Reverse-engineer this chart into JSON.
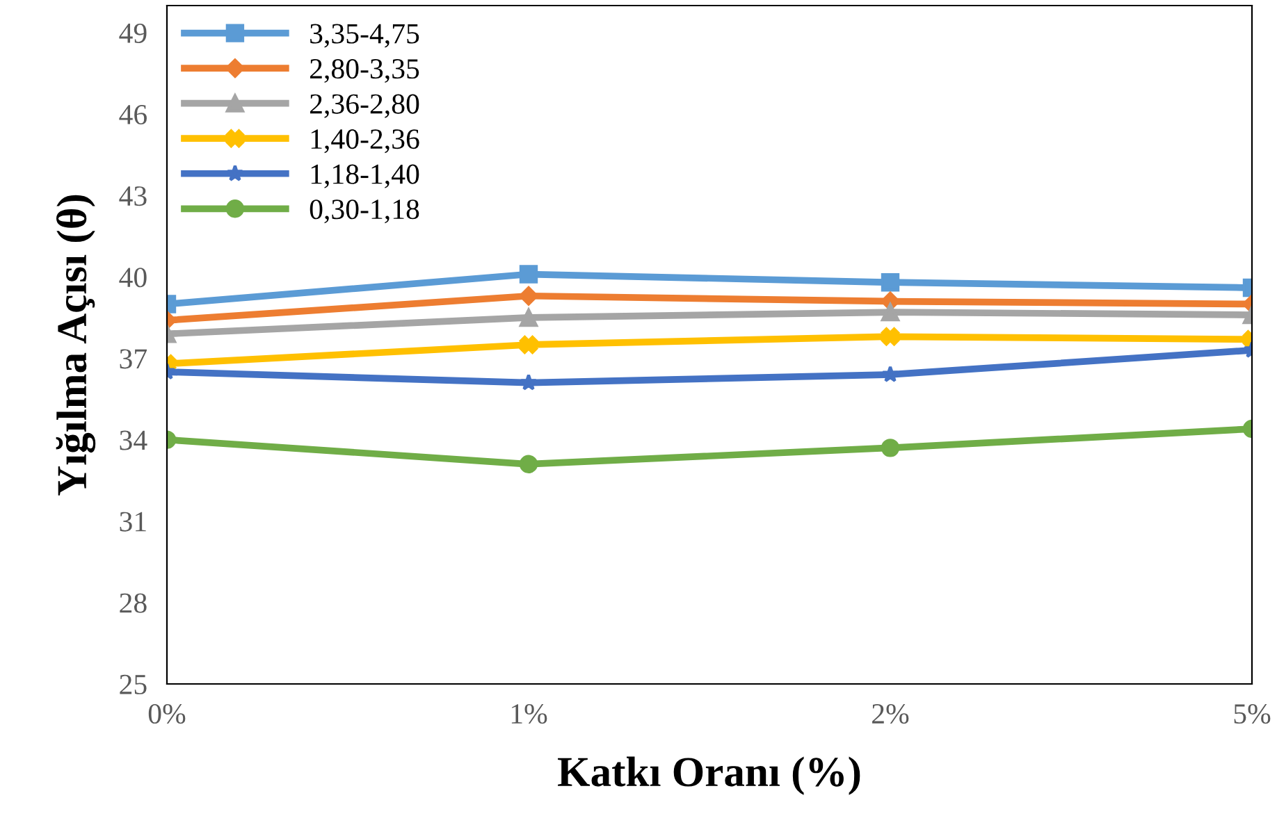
{
  "chart_data": {
    "type": "line",
    "xlabel": "Katkı Oranı (%)",
    "ylabel": "Yığılma Açısı (θ)",
    "categories": [
      "0%",
      "1%",
      "2%",
      "5%"
    ],
    "ylim": [
      25,
      50
    ],
    "yticks": [
      25,
      28,
      31,
      34,
      37,
      40,
      43,
      46,
      49
    ],
    "grid": false,
    "legend": "top left",
    "series": [
      {
        "name": "3,35-4,75",
        "color": "#5b9bd5",
        "marker": "square",
        "values": [
          39.0,
          40.1,
          39.8,
          39.6
        ]
      },
      {
        "name": "2,80-3,35",
        "color": "#ed7d31",
        "marker": "diamond",
        "values": [
          38.4,
          39.3,
          39.1,
          39.0
        ]
      },
      {
        "name": "2,36-2,80",
        "color": "#a5a5a5",
        "marker": "triangle",
        "values": [
          37.9,
          38.5,
          38.7,
          38.6
        ]
      },
      {
        "name": "1,40-2,36",
        "color": "#ffc000",
        "marker": "cross",
        "values": [
          36.8,
          37.5,
          37.8,
          37.7
        ]
      },
      {
        "name": "1,18-1,40",
        "color": "#4472c4",
        "marker": "star",
        "values": [
          36.5,
          36.1,
          36.4,
          37.3
        ]
      },
      {
        "name": "0,30-1,18",
        "color": "#70ad47",
        "marker": "circle",
        "values": [
          34.0,
          33.1,
          33.7,
          34.4
        ]
      }
    ]
  }
}
